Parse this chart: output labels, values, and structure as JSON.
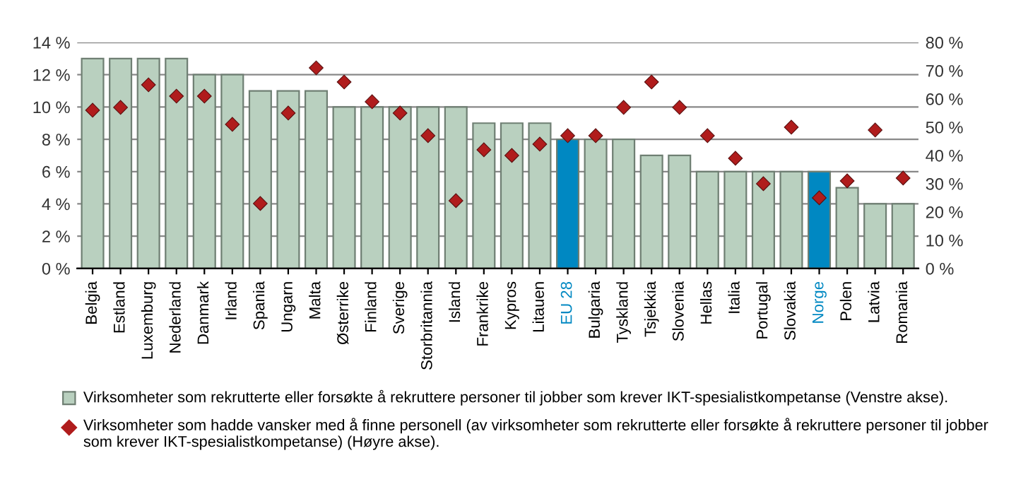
{
  "chart_data": {
    "type": "bar",
    "categories": [
      "Belgia",
      "Estland",
      "Luxemburg",
      "Nederland",
      "Danmark",
      "Irland",
      "Spania",
      "Ungarn",
      "Malta",
      "Østerrike",
      "Finland",
      "Sverige",
      "Storbritannia",
      "Island",
      "Frankrike",
      "Kypros",
      "Litauen",
      "EU 28",
      "Bulgaria",
      "Tyskland",
      "Tsjekkia",
      "Slovenia",
      "Hellas",
      "Italia",
      "Portugal",
      "Slovakia",
      "Norge",
      "Polen",
      "Latvia",
      "Romania"
    ],
    "series": [
      {
        "name": "Virksomheter som rekrutterte eller forsøkte å rekruttere personer til jobber som krever IKT-spesialistkompetanse (Venstre akse).",
        "color": "#b9d0bf",
        "colors": [
          "#b9d0bf",
          "#b9d0bf",
          "#b9d0bf",
          "#b9d0bf",
          "#b9d0bf",
          "#b9d0bf",
          "#b9d0bf",
          "#b9d0bf",
          "#b9d0bf",
          "#b9d0bf",
          "#b9d0bf",
          "#b9d0bf",
          "#b9d0bf",
          "#b9d0bf",
          "#b9d0bf",
          "#b9d0bf",
          "#b9d0bf",
          "#0088c2",
          "#b9d0bf",
          "#b9d0bf",
          "#b9d0bf",
          "#b9d0bf",
          "#b9d0bf",
          "#b9d0bf",
          "#b9d0bf",
          "#b9d0bf",
          "#0088c2",
          "#b9d0bf",
          "#b9d0bf",
          "#b9d0bf"
        ],
        "values": [
          13,
          13,
          13,
          13,
          12,
          12,
          11,
          11,
          11,
          10,
          10,
          10,
          10,
          10,
          9,
          9,
          9,
          8,
          8,
          8,
          7,
          7,
          6,
          6,
          6,
          6,
          6,
          5,
          4,
          4
        ]
      },
      {
        "name": "Virksomheter som hadde vansker med å finne personell (av virksomheter som rekrutterte eller forsøkte å rekruttere personer til jobber som krever IKT-spesialistkompetanse) (Høyre akse).",
        "type": "scatter",
        "axis": "y2",
        "color": "#b01c1c",
        "values": [
          56,
          57,
          65,
          61,
          61,
          51,
          23,
          55,
          71,
          66,
          59,
          55,
          47,
          24,
          42,
          40,
          44,
          47,
          47,
          57,
          66,
          57,
          47,
          39,
          30,
          50,
          25,
          31,
          49,
          32
        ]
      }
    ],
    "ylim": [
      0,
      14
    ],
    "yticks": [
      {
        "value": 0,
        "label": "0 %"
      },
      {
        "value": 2,
        "label": "2 %"
      },
      {
        "value": 4,
        "label": "4 %"
      },
      {
        "value": 6,
        "label": "6 %"
      },
      {
        "value": 8,
        "label": "8 %"
      },
      {
        "value": 10,
        "label": "10 %"
      },
      {
        "value": 12,
        "label": "12 %"
      },
      {
        "value": 14,
        "label": "14 %"
      }
    ],
    "y2lim": [
      0,
      80
    ],
    "y2ticks": [
      {
        "value": 0,
        "label": "0 %"
      },
      {
        "value": 10,
        "label": "10 %"
      },
      {
        "value": 20,
        "label": "20 %"
      },
      {
        "value": 30,
        "label": "30 %"
      },
      {
        "value": 40,
        "label": "40 %"
      },
      {
        "value": 50,
        "label": "50 %"
      },
      {
        "value": 60,
        "label": "60 %"
      },
      {
        "value": 70,
        "label": "70 %"
      },
      {
        "value": 80,
        "label": "80 %"
      }
    ],
    "grid": "y",
    "marker": "diamond",
    "legend": "bottom"
  }
}
